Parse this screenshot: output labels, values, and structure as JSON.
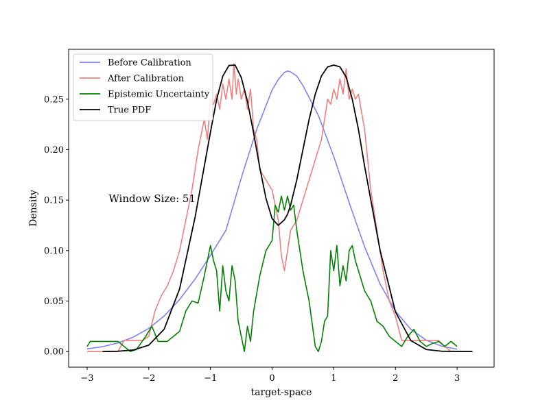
{
  "chart_data": {
    "type": "line",
    "xlabel": "target-space",
    "ylabel": "Density",
    "xlim": [
      -3.3,
      3.6
    ],
    "ylim": [
      -0.0155,
      0.2994
    ],
    "xticks": [
      {
        "value": -3,
        "label": "−3"
      },
      {
        "value": -2,
        "label": "−2"
      },
      {
        "value": -1,
        "label": "−1"
      },
      {
        "value": 0,
        "label": "0"
      },
      {
        "value": 1,
        "label": "1"
      },
      {
        "value": 2,
        "label": "2"
      },
      {
        "value": 3,
        "label": "3"
      }
    ],
    "yticks": [
      {
        "value": 0.0,
        "label": "0.00"
      },
      {
        "value": 0.05,
        "label": "0.05"
      },
      {
        "value": 0.1,
        "label": "0.10"
      },
      {
        "value": 0.15,
        "label": "0.15"
      },
      {
        "value": 0.2,
        "label": "0.20"
      },
      {
        "value": 0.25,
        "label": "0.25"
      }
    ],
    "grid": false,
    "legend_position": "top-left",
    "annotation": {
      "text": "Window Size: 51",
      "x": -2.65,
      "y": 0.148
    },
    "series": [
      {
        "name": "Before Calibration",
        "color": "#7f7ff7",
        "x": [
          -3.0,
          -2.75,
          -2.5,
          -2.25,
          -2.0,
          -1.75,
          -1.5,
          -1.25,
          -1.0,
          -0.75,
          -0.5,
          -0.25,
          0.0,
          0.1,
          0.2,
          0.25,
          0.3,
          0.4,
          0.5,
          0.75,
          1.0,
          1.25,
          1.5,
          1.75,
          2.0,
          2.25,
          2.5,
          2.75,
          3.0
        ],
        "y": [
          0.0026,
          0.0048,
          0.0085,
          0.0143,
          0.0229,
          0.0352,
          0.0515,
          0.0717,
          0.0952,
          0.12,
          0.1721,
          0.2201,
          0.2591,
          0.2695,
          0.2766,
          0.2779,
          0.277,
          0.2729,
          0.2635,
          0.2339,
          0.193,
          0.1475,
          0.1037,
          0.067,
          0.04,
          0.022,
          0.0112,
          0.0053,
          0.0023
        ]
      },
      {
        "name": "After Calibration",
        "color": "#f08080",
        "x": [
          -3.0,
          -2.8,
          -2.6,
          -2.5,
          -2.4,
          -2.3,
          -2.2,
          -2.1,
          -2.0,
          -1.9,
          -1.8,
          -1.7,
          -1.6,
          -1.5,
          -1.4,
          -1.3,
          -1.2,
          -1.1,
          -1.05,
          -1.0,
          -0.95,
          -0.9,
          -0.85,
          -0.8,
          -0.75,
          -0.7,
          -0.65,
          -0.62,
          -0.58,
          -0.55,
          -0.5,
          -0.45,
          -0.4,
          -0.35,
          -0.3,
          -0.25,
          -0.2,
          -0.1,
          0.0,
          0.1,
          0.15,
          0.2,
          0.25,
          0.3,
          0.4,
          0.5,
          0.6,
          0.7,
          0.8,
          0.85,
          0.9,
          0.95,
          1.0,
          1.05,
          1.1,
          1.15,
          1.2,
          1.25,
          1.3,
          1.35,
          1.4,
          1.5,
          1.6,
          1.7,
          1.8,
          1.9,
          2.0,
          2.1,
          2.2,
          2.3,
          2.4,
          2.5,
          2.6,
          2.7,
          2.8,
          2.9
        ],
        "y": [
          0.0,
          0.0,
          0.0,
          0.0,
          0.011,
          0.011,
          0.011,
          0.011,
          0.015,
          0.04,
          0.055,
          0.065,
          0.08,
          0.1,
          0.13,
          0.16,
          0.2,
          0.23,
          0.21,
          0.25,
          0.245,
          0.255,
          0.24,
          0.265,
          0.25,
          0.27,
          0.25,
          0.285,
          0.255,
          0.27,
          0.25,
          0.26,
          0.24,
          0.26,
          0.22,
          0.21,
          0.18,
          0.17,
          0.16,
          0.13,
          0.095,
          0.08,
          0.1,
          0.12,
          0.13,
          0.15,
          0.17,
          0.19,
          0.21,
          0.23,
          0.25,
          0.245,
          0.26,
          0.25,
          0.27,
          0.255,
          0.28,
          0.25,
          0.26,
          0.25,
          0.255,
          0.22,
          0.16,
          0.12,
          0.08,
          0.05,
          0.035,
          0.011,
          0.011,
          0.011,
          0.011,
          0.011,
          0.011,
          0.011,
          0.005,
          0.0
        ]
      },
      {
        "name": "Epistemic Uncertainty",
        "color": "#008000",
        "x": [
          -3.0,
          -2.95,
          -2.6,
          -2.5,
          -2.3,
          -2.2,
          -2.05,
          -1.95,
          -1.85,
          -1.7,
          -1.6,
          -1.5,
          -1.4,
          -1.3,
          -1.2,
          -1.1,
          -1.0,
          -0.95,
          -0.9,
          -0.85,
          -0.8,
          -0.75,
          -0.7,
          -0.65,
          -0.6,
          -0.55,
          -0.5,
          -0.45,
          -0.4,
          -0.35,
          -0.3,
          -0.2,
          -0.1,
          0.0,
          0.05,
          0.1,
          0.15,
          0.2,
          0.25,
          0.3,
          0.35,
          0.4,
          0.5,
          0.6,
          0.7,
          0.75,
          0.8,
          0.85,
          0.9,
          0.95,
          1.0,
          1.05,
          1.1,
          1.15,
          1.2,
          1.25,
          1.3,
          1.35,
          1.4,
          1.5,
          1.6,
          1.7,
          1.8,
          1.9,
          2.0,
          2.1,
          2.2,
          2.3,
          2.4,
          2.5,
          2.6,
          2.7,
          2.8,
          2.9,
          3.0
        ],
        "y": [
          0.005,
          0.01,
          0.01,
          0.01,
          0.0,
          0.002,
          0.015,
          0.025,
          0.01,
          0.01,
          0.015,
          0.02,
          0.04,
          0.05,
          0.048,
          0.075,
          0.105,
          0.09,
          0.08,
          0.04,
          0.085,
          0.06,
          0.05,
          0.085,
          0.07,
          0.03,
          0.015,
          0.0,
          0.025,
          0.01,
          0.04,
          0.075,
          0.1,
          0.11,
          0.145,
          0.138,
          0.154,
          0.14,
          0.154,
          0.14,
          0.145,
          0.12,
          0.08,
          0.05,
          0.005,
          0.0,
          0.01,
          0.03,
          0.035,
          0.1,
          0.08,
          0.105,
          0.065,
          0.085,
          0.07,
          0.1,
          0.105,
          0.09,
          0.08,
          0.06,
          0.05,
          0.03,
          0.025,
          0.015,
          0.01,
          0.005,
          0.015,
          0.022,
          0.01,
          0.005,
          0.008,
          0.01,
          0.005,
          0.01,
          0.005
        ]
      },
      {
        "name": "True PDF",
        "color": "#000000",
        "x": [
          -2.75,
          -2.5,
          -2.25,
          -2.0,
          -1.75,
          -1.5,
          -1.25,
          -1.0,
          -0.9,
          -0.8,
          -0.7,
          -0.6,
          -0.5,
          -0.4,
          -0.3,
          -0.2,
          -0.1,
          0.0,
          0.1,
          0.2,
          0.25,
          0.3,
          0.4,
          0.5,
          0.6,
          0.7,
          0.8,
          0.9,
          1.0,
          1.1,
          1.2,
          1.3,
          1.4,
          1.5,
          1.75,
          2.0,
          2.25,
          2.5,
          2.75,
          3.0,
          3.25
        ],
        "y": [
          0.0,
          0.0003,
          0.0015,
          0.0063,
          0.0222,
          0.0621,
          0.1328,
          0.2173,
          0.2495,
          0.2728,
          0.2834,
          0.2838,
          0.2715,
          0.2479,
          0.2164,
          0.1823,
          0.1518,
          0.1316,
          0.125,
          0.1305,
          0.136,
          0.145,
          0.17,
          0.2,
          0.23,
          0.255,
          0.273,
          0.282,
          0.2838,
          0.282,
          0.272,
          0.25,
          0.22,
          0.1836,
          0.1005,
          0.0393,
          0.0108,
          0.002,
          0.0003,
          0.0,
          0.0
        ]
      }
    ]
  }
}
